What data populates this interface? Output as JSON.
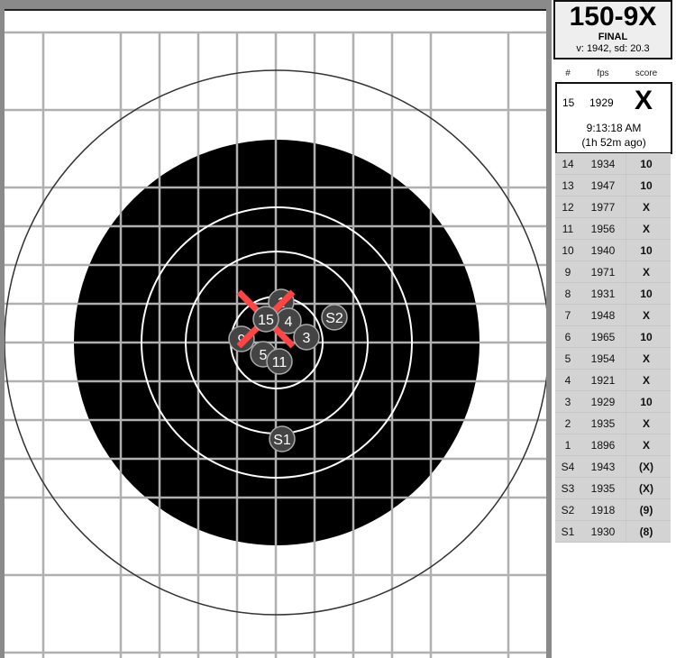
{
  "summary": {
    "score": "150-9X",
    "status": "FINAL",
    "stats": "v: 1942, sd: 20.3"
  },
  "table": {
    "headers": [
      "#",
      "fps",
      "score"
    ],
    "latest": {
      "num": "15",
      "fps": "1929",
      "score": "X",
      "time": "9:13:18 AM",
      "ago": "(1h 52m ago)"
    },
    "rows": [
      {
        "num": "14",
        "fps": "1934",
        "score": "10"
      },
      {
        "num": "13",
        "fps": "1947",
        "score": "10"
      },
      {
        "num": "12",
        "fps": "1977",
        "score": "X"
      },
      {
        "num": "11",
        "fps": "1956",
        "score": "X"
      },
      {
        "num": "10",
        "fps": "1940",
        "score": "10"
      },
      {
        "num": "9",
        "fps": "1971",
        "score": "X"
      },
      {
        "num": "8",
        "fps": "1931",
        "score": "10"
      },
      {
        "num": "7",
        "fps": "1948",
        "score": "X"
      },
      {
        "num": "6",
        "fps": "1965",
        "score": "10"
      },
      {
        "num": "5",
        "fps": "1954",
        "score": "X"
      },
      {
        "num": "4",
        "fps": "1921",
        "score": "X"
      },
      {
        "num": "3",
        "fps": "1929",
        "score": "10"
      },
      {
        "num": "2",
        "fps": "1935",
        "score": "X"
      },
      {
        "num": "1",
        "fps": "1896",
        "score": "X"
      },
      {
        "num": "S4",
        "fps": "1943",
        "score": "(X)"
      },
      {
        "num": "S3",
        "fps": "1935",
        "score": "(X)"
      },
      {
        "num": "S2",
        "fps": "1918",
        "score": "(9)"
      },
      {
        "num": "S1",
        "fps": "1930",
        "score": "(8)"
      }
    ]
  },
  "target": {
    "shot_labels": [
      "9",
      "1",
      "4",
      "5",
      "11",
      "3",
      "S2",
      "S1",
      "15"
    ],
    "latest_shot": "15",
    "colors": {
      "marker": "#ff4444",
      "shot": "#444444",
      "bull": "#000000",
      "grid": "#b0b0b0",
      "frame": "#8a8a8a"
    }
  }
}
